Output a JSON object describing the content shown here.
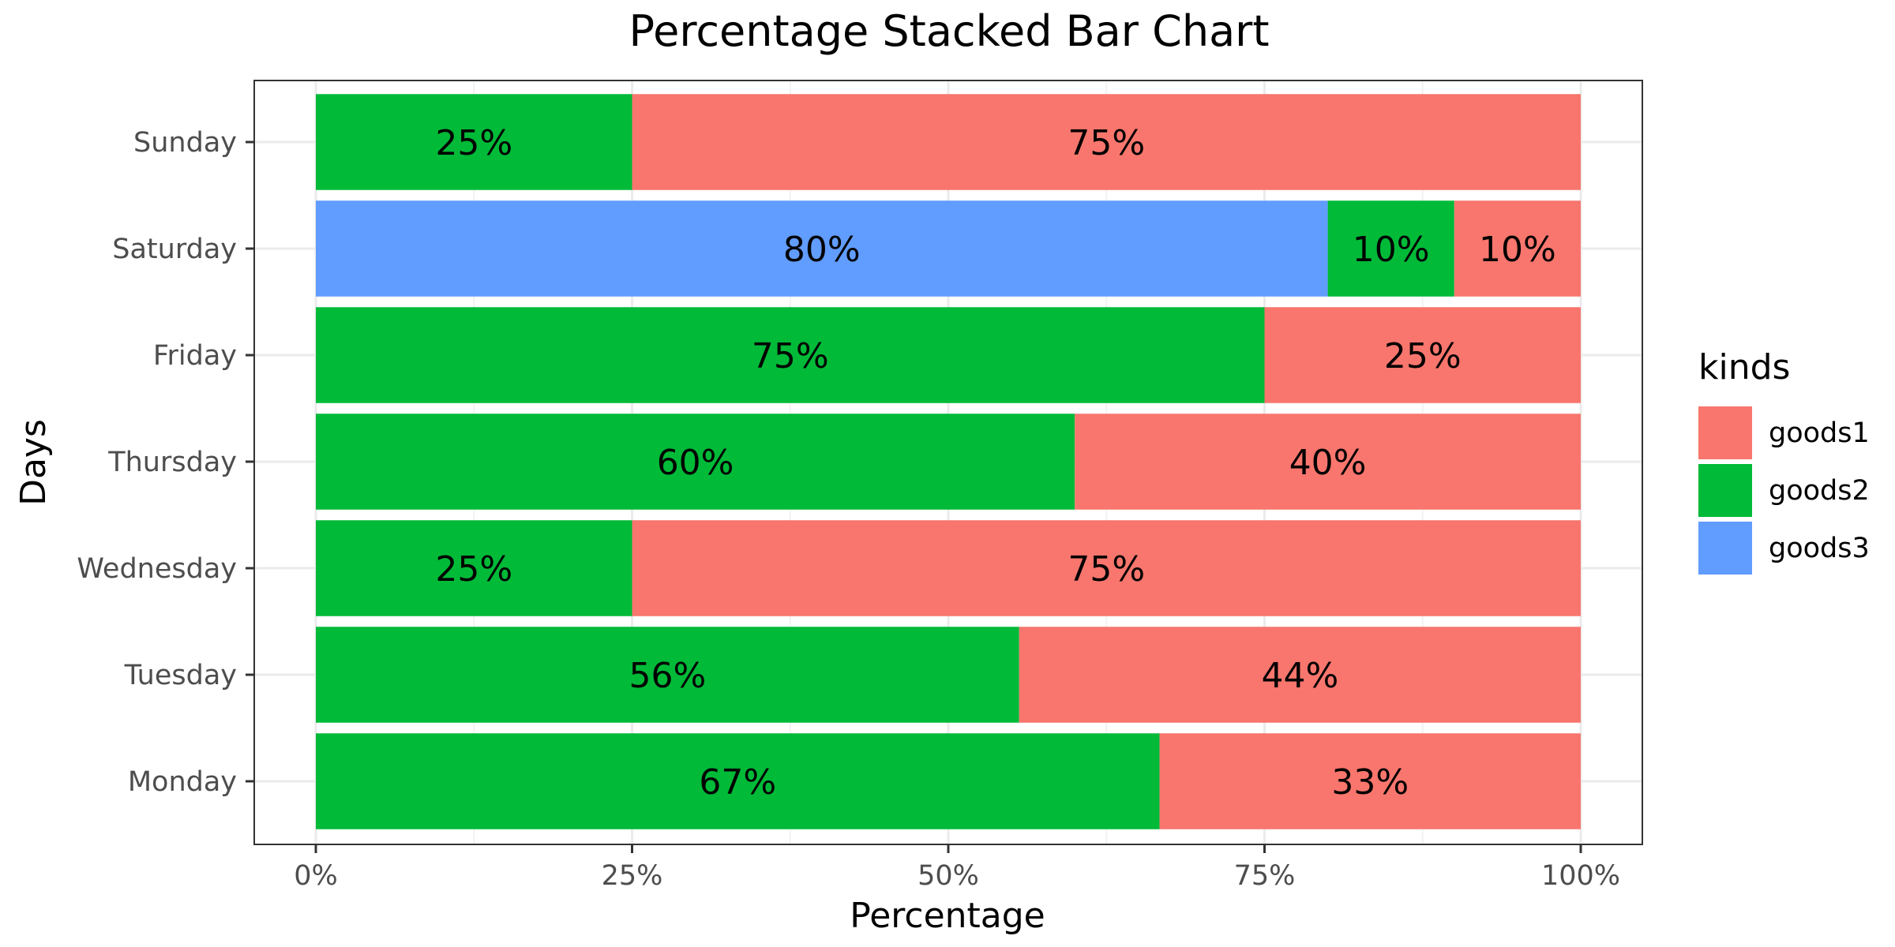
{
  "chart_data": {
    "type": "bar",
    "orientation": "horizontal",
    "stacked": "percent",
    "title": "Percentage Stacked Bar Chart",
    "xlabel": "Percentage",
    "ylabel": "Days",
    "xlim": [
      0,
      100
    ],
    "x_ticks": [
      {
        "value": 0,
        "label": "0%"
      },
      {
        "value": 25,
        "label": "25%"
      },
      {
        "value": 50,
        "label": "50%"
      },
      {
        "value": 75,
        "label": "75%"
      },
      {
        "value": 100,
        "label": "100%"
      }
    ],
    "categories": [
      "Monday",
      "Tuesday",
      "Wednesday",
      "Thursday",
      "Friday",
      "Saturday",
      "Sunday"
    ],
    "stack_order": [
      "goods3",
      "goods2",
      "goods1"
    ],
    "series": [
      {
        "name": "goods1",
        "color": "#F8766D",
        "values": [
          33.3,
          44.4,
          75,
          40,
          25,
          10,
          75
        ],
        "labels": [
          "33%",
          "44%",
          "75%",
          "40%",
          "25%",
          "10%",
          "75%"
        ]
      },
      {
        "name": "goods2",
        "color": "#00BA38",
        "values": [
          66.7,
          55.6,
          25,
          60,
          75,
          10,
          25
        ],
        "labels": [
          "67%",
          "56%",
          "25%",
          "60%",
          "75%",
          "10%",
          "25%"
        ]
      },
      {
        "name": "goods3",
        "color": "#619CFF",
        "values": [
          0,
          0,
          0,
          0,
          0,
          80,
          0
        ],
        "labels": [
          "",
          "",
          "",
          "",
          "",
          "80%",
          ""
        ]
      }
    ],
    "legend": {
      "title": "kinds",
      "position": "right"
    },
    "grid": true
  }
}
